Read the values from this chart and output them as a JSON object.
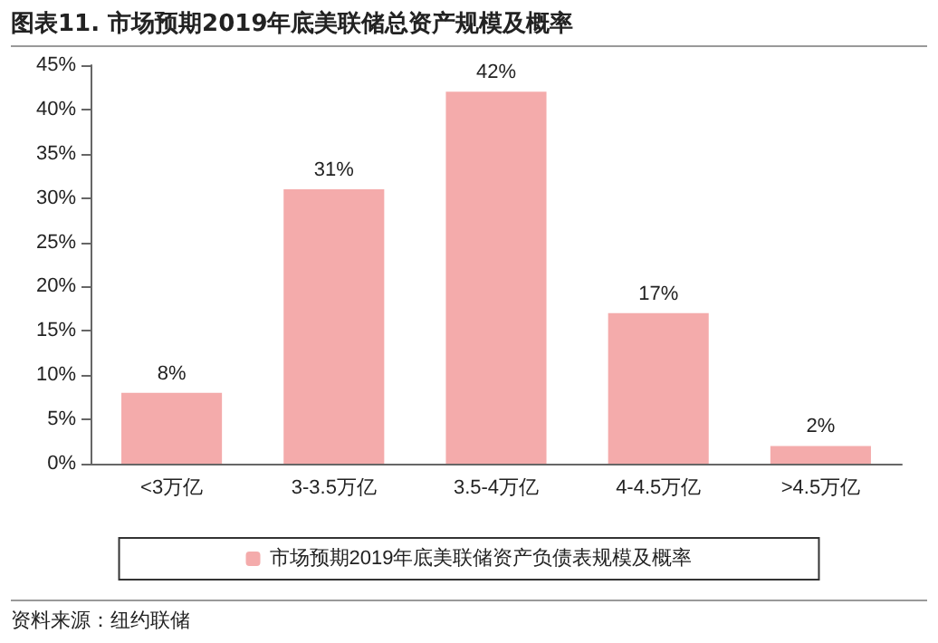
{
  "chart_data": {
    "type": "bar",
    "title": "图表11. 市场预期2019年底美联储总资产规模及概率",
    "categories": [
      "<3万亿",
      "3-3.5万亿",
      "3.5-4万亿",
      "4-4.5万亿",
      ">4.5万亿"
    ],
    "series": [
      {
        "name": "市场预期2019年底美联储资产负债表规模及概率",
        "color": "#f4abab",
        "values": [
          8,
          31,
          42,
          17,
          2
        ],
        "value_labels": [
          "8%",
          "31%",
          "42%",
          "17%",
          "2%"
        ]
      }
    ],
    "ylim": [
      0,
      45
    ],
    "yticks": [
      {
        "value": 0,
        "label": "0%"
      },
      {
        "value": 5,
        "label": "5%"
      },
      {
        "value": 10,
        "label": "10%"
      },
      {
        "value": 15,
        "label": "15%"
      },
      {
        "value": 20,
        "label": "20%"
      },
      {
        "value": 25,
        "label": "25%"
      },
      {
        "value": 30,
        "label": "30%"
      },
      {
        "value": 35,
        "label": "35%"
      },
      {
        "value": 40,
        "label": "40%"
      },
      {
        "value": 45,
        "label": "45%"
      }
    ],
    "grid": false,
    "legend": "bottom",
    "annotations": [
      "资料来源：纽约联储"
    ]
  }
}
